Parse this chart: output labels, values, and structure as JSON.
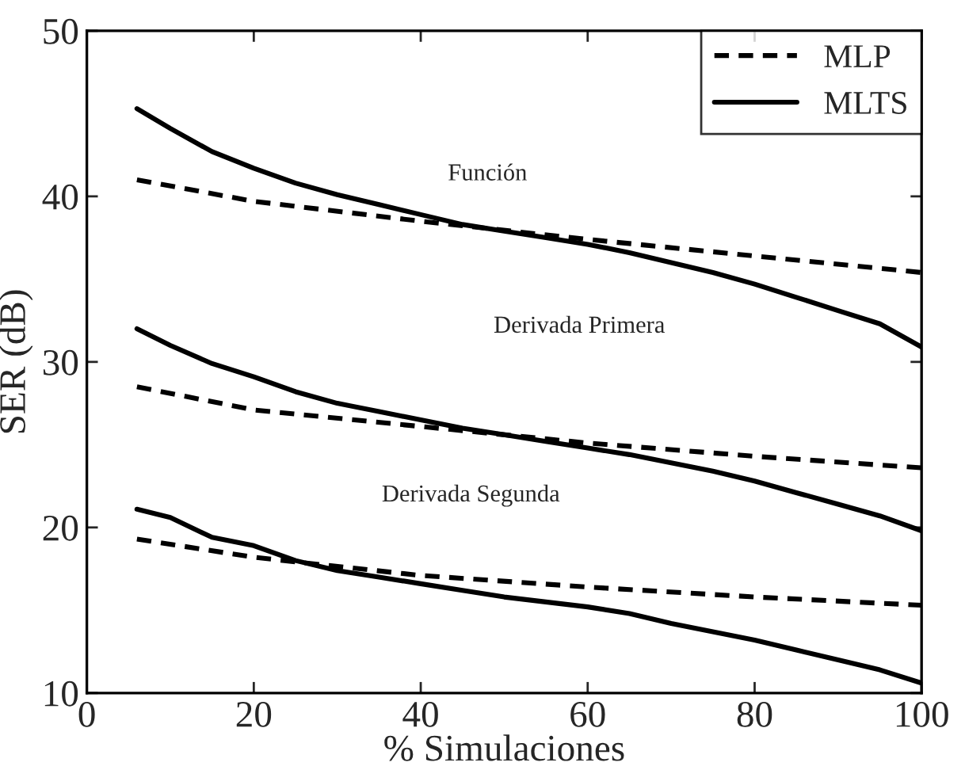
{
  "chart_data": {
    "type": "line",
    "xlabel": "% Simulaciones",
    "ylabel": "SER (dB)",
    "xlim": [
      0,
      100
    ],
    "ylim": [
      10,
      50
    ],
    "xticks": [
      0,
      20,
      40,
      60,
      80,
      100
    ],
    "yticks": [
      10,
      20,
      30,
      40,
      50
    ],
    "grid": false,
    "legend": "top right",
    "marker": "none",
    "series": [
      {
        "name": "MLP",
        "color": "#000000",
        "line_style": "dashed",
        "x": [
          6,
          20,
          40,
          60,
          80,
          100
        ],
        "values": [
          41.0,
          39.7,
          38.5,
          37.4,
          36.4,
          35.4
        ]
      },
      {
        "name": "MLTS",
        "color": "#000000",
        "line_style": "solid",
        "x": [
          6,
          10,
          15,
          20,
          25,
          30,
          35,
          40,
          45,
          50,
          55,
          60,
          65,
          70,
          75,
          80,
          85,
          90,
          95,
          100
        ],
        "values": [
          45.3,
          44.1,
          42.7,
          41.7,
          40.8,
          40.1,
          39.5,
          38.9,
          38.3,
          37.9,
          37.5,
          37.1,
          36.6,
          36.0,
          35.4,
          34.7,
          33.9,
          33.1,
          32.3,
          30.9
        ]
      },
      {
        "color": "#000000",
        "line_style": "dashed",
        "x": [
          6,
          20,
          40,
          60,
          80,
          100
        ],
        "values": [
          28.5,
          27.1,
          26.1,
          25.1,
          24.3,
          23.6
        ]
      },
      {
        "color": "#000000",
        "line_style": "solid",
        "x": [
          6,
          10,
          15,
          20,
          25,
          30,
          35,
          40,
          45,
          50,
          55,
          60,
          65,
          70,
          75,
          80,
          85,
          90,
          95,
          100
        ],
        "values": [
          32.0,
          31.0,
          29.9,
          29.1,
          28.2,
          27.5,
          27.0,
          26.5,
          26.0,
          25.6,
          25.2,
          24.8,
          24.4,
          23.9,
          23.4,
          22.8,
          22.1,
          21.4,
          20.7,
          19.8
        ]
      },
      {
        "color": "#000000",
        "line_style": "dashed",
        "x": [
          6,
          20,
          40,
          60,
          80,
          100
        ],
        "values": [
          19.3,
          18.2,
          17.1,
          16.4,
          15.8,
          15.3
        ]
      },
      {
        "color": "#000000",
        "line_style": "solid",
        "x": [
          6,
          10,
          15,
          20,
          25,
          30,
          35,
          40,
          45,
          50,
          55,
          60,
          65,
          70,
          75,
          80,
          85,
          90,
          95,
          100
        ],
        "values": [
          21.1,
          20.6,
          19.4,
          18.9,
          18.0,
          17.4,
          17.0,
          16.6,
          16.2,
          15.8,
          15.5,
          15.2,
          14.8,
          14.2,
          13.7,
          13.2,
          12.6,
          12.0,
          11.4,
          10.6
        ]
      }
    ],
    "annotations": [
      "Función",
      "Derivada Primera",
      "Derivada Segunda"
    ]
  }
}
